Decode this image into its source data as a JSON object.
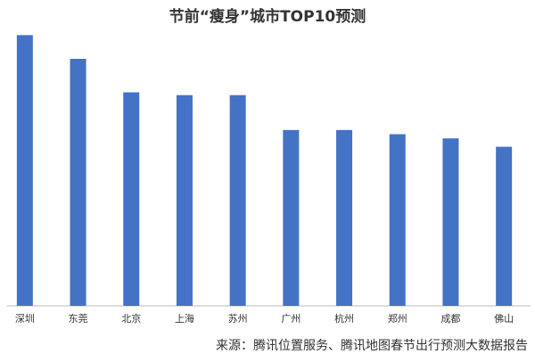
{
  "chart_data": {
    "type": "bar",
    "title": "节前“瘦身”城市TOP10预测",
    "categories": [
      "深圳",
      "东莞",
      "北京",
      "上海",
      "苏州",
      "广州",
      "杭州",
      "郑州",
      "成都",
      "佛山"
    ],
    "values": [
      97,
      88.5,
      76.5,
      75.5,
      75.5,
      63,
      63,
      61.5,
      60,
      57
    ],
    "color": "#4472c4",
    "ylim": [
      0,
      100
    ],
    "source": "来源：腾讯位置服务、腾讯地图春节出行预测大数据报告"
  }
}
